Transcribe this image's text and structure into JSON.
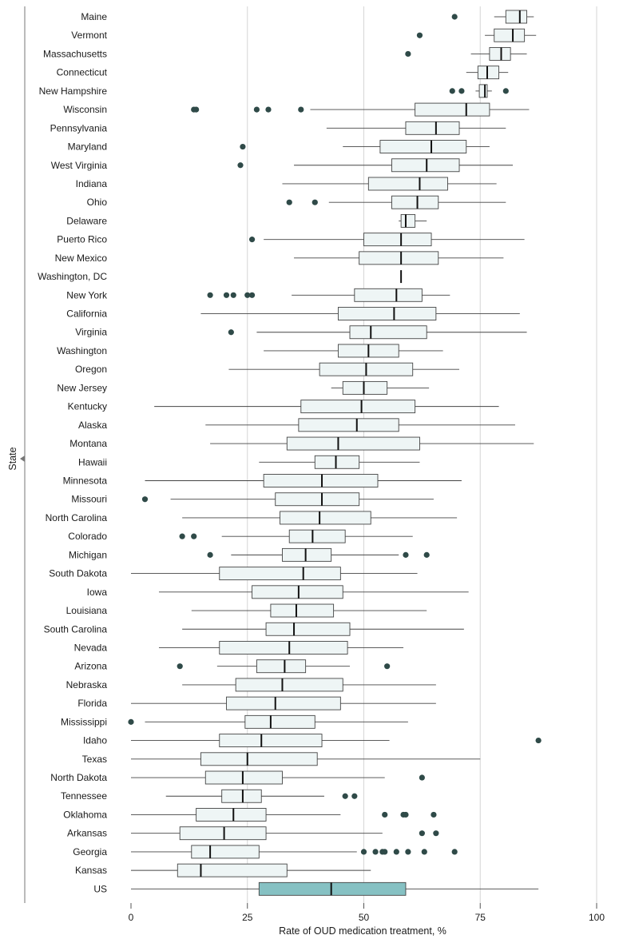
{
  "chart_data": {
    "type": "boxplot",
    "title": "",
    "xlabel": "Rate of OUD medication treatment, %",
    "ylabel": "State",
    "xlim": [
      0,
      100
    ],
    "xticks": [
      0,
      25,
      50,
      75,
      100
    ],
    "grid": "vertical",
    "colors": {
      "box": "#eef5f5",
      "box_us": "#86c1c3",
      "stroke": "#444444",
      "outlier": "#2f4a48",
      "grid": "#d6d6d6"
    },
    "series": [
      {
        "name": "Maine",
        "whisker_low": 78,
        "q1": 80.5,
        "median": 83.5,
        "q3": 85,
        "whisker_high": 86.5,
        "outliers": [
          69.5
        ]
      },
      {
        "name": "Vermont",
        "whisker_low": 76,
        "q1": 78,
        "median": 82,
        "q3": 84.5,
        "whisker_high": 87,
        "outliers": [
          62
        ]
      },
      {
        "name": "Massachusetts",
        "whisker_low": 73,
        "q1": 77,
        "median": 79.5,
        "q3": 81.5,
        "whisker_high": 85,
        "outliers": [
          59.5
        ]
      },
      {
        "name": "Connecticut",
        "whisker_low": 72,
        "q1": 74.5,
        "median": 76.5,
        "q3": 79,
        "whisker_high": 81,
        "outliers": []
      },
      {
        "name": "New Hampshire",
        "whisker_low": 74,
        "q1": 74.8,
        "median": 76,
        "q3": 76.5,
        "whisker_high": 77.5,
        "outliers": [
          69,
          71,
          80.5
        ]
      },
      {
        "name": "Wisconsin",
        "whisker_low": 38.5,
        "q1": 61,
        "median": 72,
        "q3": 77,
        "whisker_high": 85.5,
        "outliers": [
          13.5,
          14,
          27,
          29.5,
          36.5
        ]
      },
      {
        "name": "Pennsylvania",
        "whisker_low": 42,
        "q1": 59,
        "median": 65.5,
        "q3": 70.5,
        "whisker_high": 80.5,
        "outliers": []
      },
      {
        "name": "Maryland",
        "whisker_low": 45.5,
        "q1": 53.5,
        "median": 64.5,
        "q3": 72,
        "whisker_high": 77,
        "outliers": [
          24
        ]
      },
      {
        "name": "West Virginia",
        "whisker_low": 35,
        "q1": 56,
        "median": 63.5,
        "q3": 70.5,
        "whisker_high": 82,
        "outliers": [
          23.5
        ]
      },
      {
        "name": "Indiana",
        "whisker_low": 32.5,
        "q1": 51,
        "median": 62,
        "q3": 68,
        "whisker_high": 78.5,
        "outliers": []
      },
      {
        "name": "Ohio",
        "whisker_low": 42.5,
        "q1": 56,
        "median": 61.5,
        "q3": 66,
        "whisker_high": 80.5,
        "outliers": [
          34,
          39.5
        ]
      },
      {
        "name": "Delaware",
        "whisker_low": 57.5,
        "q1": 58,
        "median": 59,
        "q3": 61,
        "whisker_high": 63.5,
        "outliers": []
      },
      {
        "name": "Puerto Rico",
        "whisker_low": 28.5,
        "q1": 50,
        "median": 58,
        "q3": 64.5,
        "whisker_high": 84.5,
        "outliers": [
          26
        ]
      },
      {
        "name": "New Mexico",
        "whisker_low": 35,
        "q1": 49,
        "median": 58,
        "q3": 66,
        "whisker_high": 80,
        "outliers": []
      },
      {
        "name": "Washington, DC",
        "whisker_low": 58,
        "q1": 58,
        "median": 58,
        "q3": 58,
        "whisker_high": 58,
        "outliers": []
      },
      {
        "name": "New York",
        "whisker_low": 34.5,
        "q1": 48,
        "median": 57,
        "q3": 62.5,
        "whisker_high": 68.5,
        "outliers": [
          17,
          20.5,
          22,
          25,
          26
        ]
      },
      {
        "name": "California",
        "whisker_low": 15,
        "q1": 44.5,
        "median": 56.5,
        "q3": 65.5,
        "whisker_high": 83.5,
        "outliers": []
      },
      {
        "name": "Virginia",
        "whisker_low": 27,
        "q1": 47,
        "median": 51.5,
        "q3": 63.5,
        "whisker_high": 85,
        "outliers": [
          21.5
        ]
      },
      {
        "name": "Washington",
        "whisker_low": 28.5,
        "q1": 44.5,
        "median": 51,
        "q3": 57.5,
        "whisker_high": 67,
        "outliers": []
      },
      {
        "name": "Oregon",
        "whisker_low": 21,
        "q1": 40.5,
        "median": 50.5,
        "q3": 60.5,
        "whisker_high": 70.5,
        "outliers": []
      },
      {
        "name": "New Jersey",
        "whisker_low": 43,
        "q1": 45.5,
        "median": 50,
        "q3": 55,
        "whisker_high": 64,
        "outliers": []
      },
      {
        "name": "Kentucky",
        "whisker_low": 5,
        "q1": 36.5,
        "median": 49.5,
        "q3": 61,
        "whisker_high": 79,
        "outliers": []
      },
      {
        "name": "Alaska",
        "whisker_low": 16,
        "q1": 36,
        "median": 48.5,
        "q3": 57.5,
        "whisker_high": 82.5,
        "outliers": []
      },
      {
        "name": "Montana",
        "whisker_low": 17,
        "q1": 33.5,
        "median": 44.5,
        "q3": 62,
        "whisker_high": 86.5,
        "outliers": []
      },
      {
        "name": "Hawaii",
        "whisker_low": 27.5,
        "q1": 39.5,
        "median": 44,
        "q3": 49,
        "whisker_high": 62,
        "outliers": []
      },
      {
        "name": "Minnesota",
        "whisker_low": 3,
        "q1": 28.5,
        "median": 41,
        "q3": 53,
        "whisker_high": 71,
        "outliers": []
      },
      {
        "name": "Missouri",
        "whisker_low": 8.5,
        "q1": 31,
        "median": 41,
        "q3": 49,
        "whisker_high": 65,
        "outliers": [
          3
        ]
      },
      {
        "name": "North Carolina",
        "whisker_low": 11,
        "q1": 32,
        "median": 40.5,
        "q3": 51.5,
        "whisker_high": 70,
        "outliers": []
      },
      {
        "name": "Colorado",
        "whisker_low": 19.5,
        "q1": 34,
        "median": 39,
        "q3": 46,
        "whisker_high": 60.5,
        "outliers": [
          11,
          13.5
        ]
      },
      {
        "name": "Michigan",
        "whisker_low": 21.5,
        "q1": 32.5,
        "median": 37.5,
        "q3": 43,
        "whisker_high": 57.5,
        "outliers": [
          17,
          59,
          63.5
        ]
      },
      {
        "name": "South Dakota",
        "whisker_low": 0,
        "q1": 19,
        "median": 37,
        "q3": 45,
        "whisker_high": 61.5,
        "outliers": []
      },
      {
        "name": "Iowa",
        "whisker_low": 6,
        "q1": 26,
        "median": 36,
        "q3": 45.5,
        "whisker_high": 72.5,
        "outliers": []
      },
      {
        "name": "Louisiana",
        "whisker_low": 13,
        "q1": 30,
        "median": 35.5,
        "q3": 43.5,
        "whisker_high": 63.5,
        "outliers": []
      },
      {
        "name": "South Carolina",
        "whisker_low": 11,
        "q1": 29,
        "median": 35,
        "q3": 47,
        "whisker_high": 71.5,
        "outliers": []
      },
      {
        "name": "Nevada",
        "whisker_low": 6,
        "q1": 19,
        "median": 34,
        "q3": 46.5,
        "whisker_high": 58.5,
        "outliers": []
      },
      {
        "name": "Arizona",
        "whisker_low": 18.5,
        "q1": 27,
        "median": 33,
        "q3": 37.5,
        "whisker_high": 47,
        "outliers": [
          10.5,
          55
        ]
      },
      {
        "name": "Nebraska",
        "whisker_low": 11,
        "q1": 22.5,
        "median": 32.5,
        "q3": 45.5,
        "whisker_high": 65.5,
        "outliers": []
      },
      {
        "name": "Florida",
        "whisker_low": 0,
        "q1": 20.5,
        "median": 31,
        "q3": 45,
        "whisker_high": 65.5,
        "outliers": []
      },
      {
        "name": "Mississippi",
        "whisker_low": 3,
        "q1": 24.5,
        "median": 30,
        "q3": 39.5,
        "whisker_high": 59.5,
        "outliers": [
          0
        ]
      },
      {
        "name": "Idaho",
        "whisker_low": 0,
        "q1": 19,
        "median": 28,
        "q3": 41,
        "whisker_high": 55.5,
        "outliers": [
          87.5
        ]
      },
      {
        "name": "Texas",
        "whisker_low": 0,
        "q1": 15,
        "median": 25,
        "q3": 40,
        "whisker_high": 75,
        "outliers": []
      },
      {
        "name": "North Dakota",
        "whisker_low": 0,
        "q1": 16,
        "median": 24,
        "q3": 32.5,
        "whisker_high": 54.5,
        "outliers": [
          62.5
        ]
      },
      {
        "name": "Tennessee",
        "whisker_low": 7.5,
        "q1": 19.5,
        "median": 24,
        "q3": 28,
        "whisker_high": 41.5,
        "outliers": [
          46,
          48
        ]
      },
      {
        "name": "Oklahoma",
        "whisker_low": 0,
        "q1": 14,
        "median": 22,
        "q3": 29,
        "whisker_high": 45,
        "outliers": [
          54.5,
          58.5,
          59,
          65
        ]
      },
      {
        "name": "Arkansas",
        "whisker_low": 0,
        "q1": 10.5,
        "median": 20,
        "q3": 29,
        "whisker_high": 54,
        "outliers": [
          62.5,
          65.5
        ]
      },
      {
        "name": "Georgia",
        "whisker_low": 0,
        "q1": 13,
        "median": 17,
        "q3": 27.5,
        "whisker_high": 48.5,
        "outliers": [
          50,
          52.5,
          54,
          54.5,
          57,
          59.5,
          63,
          69.5
        ]
      },
      {
        "name": "Kansas",
        "whisker_low": 0,
        "q1": 10,
        "median": 15,
        "q3": 33.5,
        "whisker_high": 51.5,
        "outliers": []
      },
      {
        "name": "US",
        "whisker_low": 0,
        "q1": 27.5,
        "median": 43,
        "q3": 59,
        "whisker_high": 87.5,
        "outliers": [],
        "highlight": true
      }
    ]
  }
}
